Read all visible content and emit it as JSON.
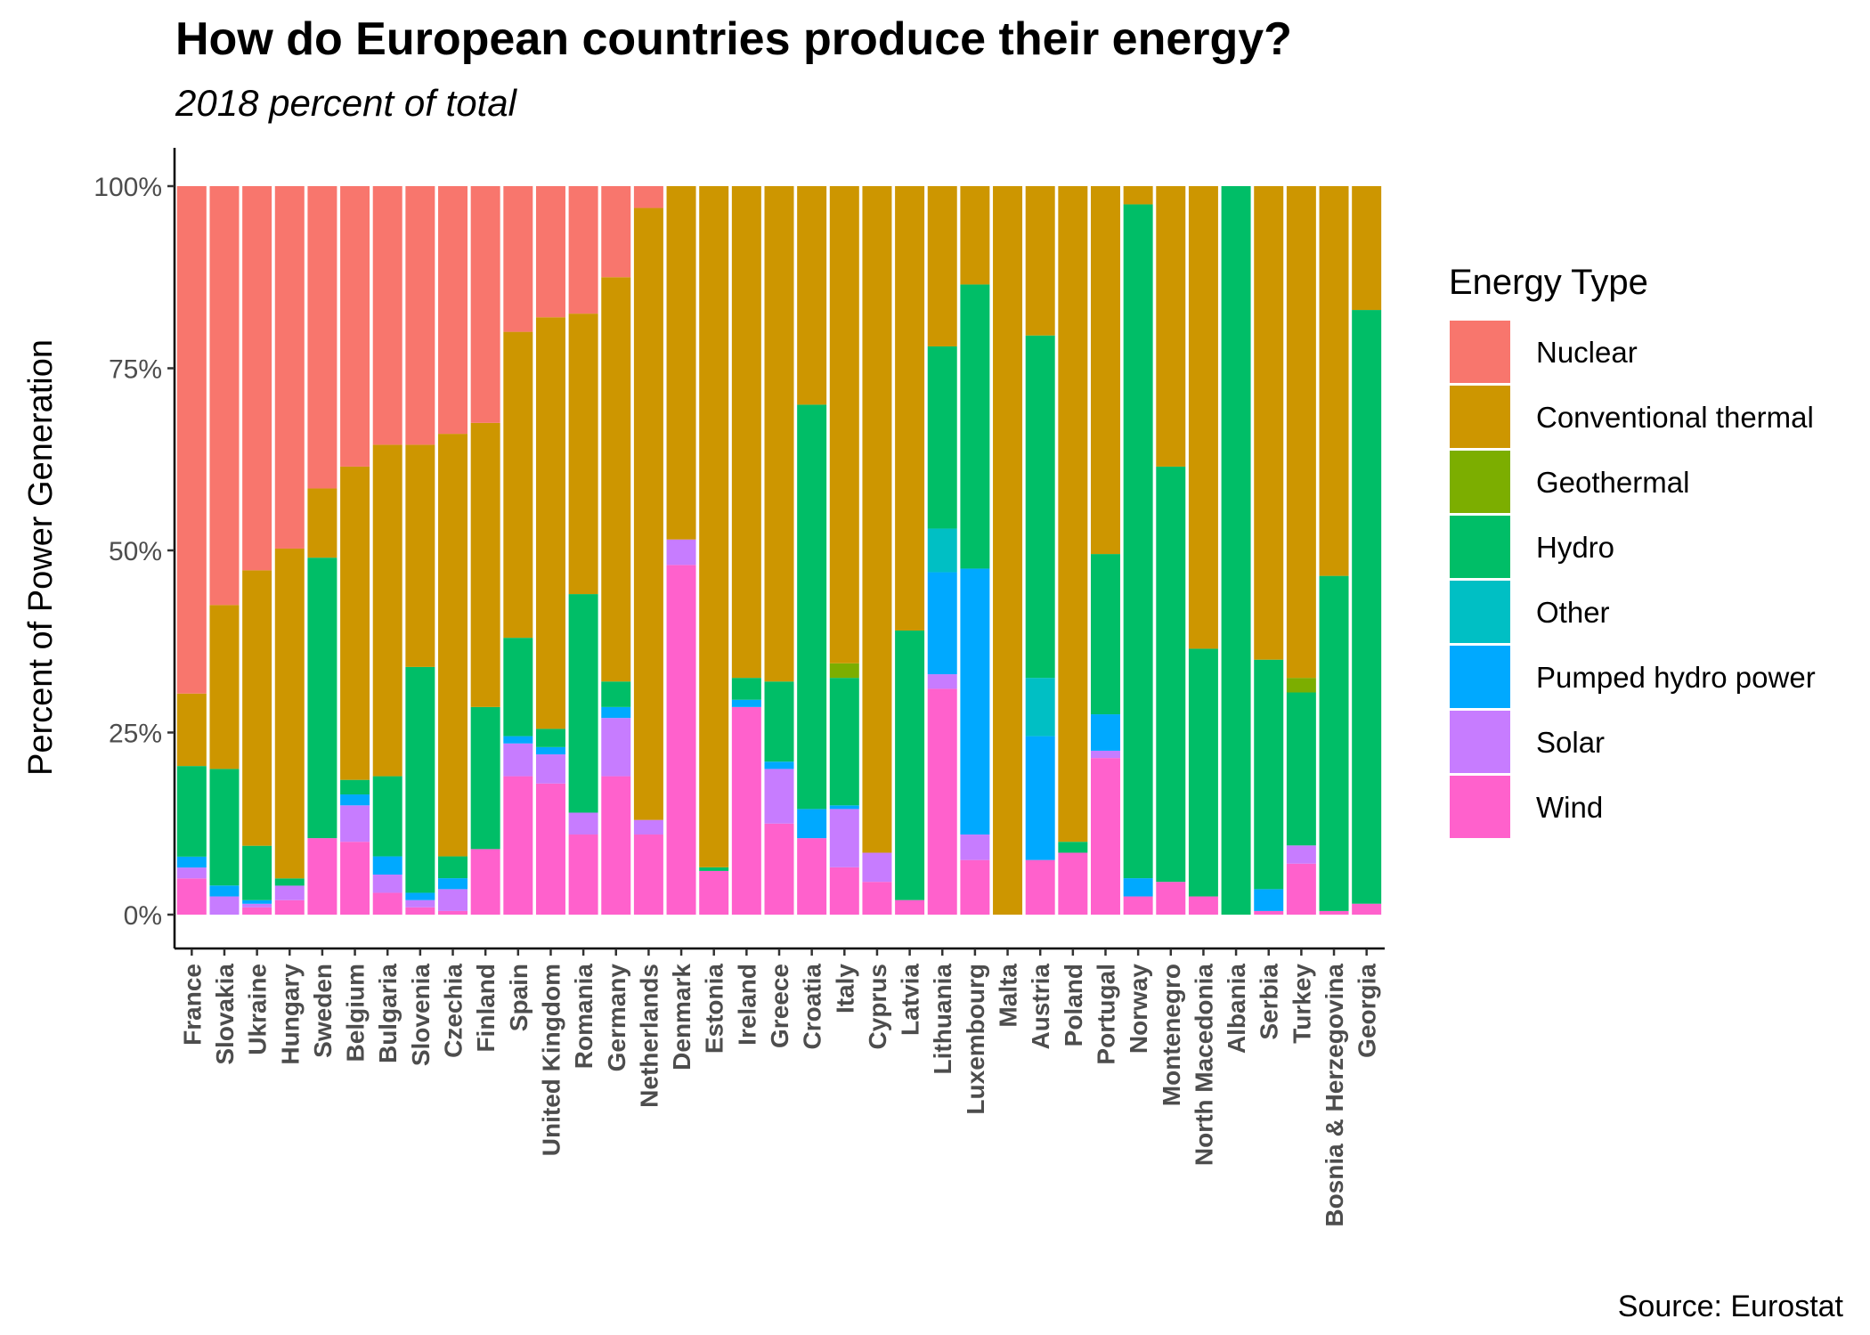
{
  "chart_data": {
    "type": "bar",
    "stacked": true,
    "title": "How do European countries produce their energy?",
    "subtitle": "2018 percent of total",
    "caption": "Source: Eurostat",
    "xlabel": "",
    "ylabel": "Percent of Power Generation",
    "ylim": [
      0,
      1
    ],
    "yticks": [
      {
        "value": 0,
        "label": "0%"
      },
      {
        "value": 0.25,
        "label": "25%"
      },
      {
        "value": 0.5,
        "label": "50%"
      },
      {
        "value": 0.75,
        "label": "75%"
      },
      {
        "value": 1,
        "label": "100%"
      }
    ],
    "grid": false,
    "legend": {
      "title": "Energy Type",
      "position": "right"
    },
    "categories": [
      "France",
      "Slovakia",
      "Ukraine",
      "Hungary",
      "Sweden",
      "Belgium",
      "Bulgaria",
      "Slovenia",
      "Czechia",
      "Finland",
      "Spain",
      "United Kingdom",
      "Romania",
      "Germany",
      "Netherlands",
      "Denmark",
      "Estonia",
      "Ireland",
      "Greece",
      "Croatia",
      "Italy",
      "Cyprus",
      "Latvia",
      "Lithuania",
      "Luxembourg",
      "Malta",
      "Austria",
      "Poland",
      "Portugal",
      "Norway",
      "Montenegro",
      "North Macedonia",
      "Albania",
      "Serbia",
      "Turkey",
      "Bosnia & Herzegovina",
      "Georgia"
    ],
    "series": [
      {
        "name": "Nuclear",
        "color": "#F8766D",
        "values": [
          0.7,
          0.575,
          0.53,
          0.5,
          0.415,
          0.385,
          0.355,
          0.355,
          0.34,
          0.325,
          0.2,
          0.18,
          0.175,
          0.125,
          0.03,
          0,
          0,
          0,
          0,
          0,
          0,
          0,
          0,
          0,
          0,
          0,
          0,
          0,
          0,
          0,
          0,
          0,
          0,
          0,
          0,
          0,
          0
        ]
      },
      {
        "name": "Conventional thermal",
        "color": "#CD9600",
        "values": [
          0.1,
          0.225,
          0.38,
          0.455,
          0.095,
          0.43,
          0.455,
          0.305,
          0.58,
          0.39,
          0.42,
          0.565,
          0.385,
          0.555,
          0.84,
          0.485,
          0.935,
          0.675,
          0.68,
          0.3,
          0.655,
          0.915,
          0.61,
          0.22,
          0.135,
          1.0,
          0.205,
          0.9,
          0.505,
          0.025,
          0.385,
          0.635,
          0,
          0.65,
          0.675,
          0.535,
          0.17
        ]
      },
      {
        "name": "Geothermal",
        "color": "#7CAE00",
        "values": [
          0,
          0,
          0,
          0,
          0,
          0,
          0,
          0,
          0,
          0,
          0,
          0,
          0,
          0,
          0,
          0,
          0,
          0,
          0,
          0,
          0.02,
          0,
          0,
          0,
          0,
          0,
          0,
          0,
          0,
          0,
          0,
          0,
          0,
          0,
          0.02,
          0,
          0
        ]
      },
      {
        "name": "Hydro",
        "color": "#00BE67",
        "values": [
          0.125,
          0.16,
          0.075,
          0.01,
          0.385,
          0.02,
          0.11,
          0.31,
          0.03,
          0.195,
          0.135,
          0.025,
          0.3,
          0.035,
          0,
          0,
          0.005,
          0.03,
          0.11,
          0.555,
          0.175,
          0,
          0.37,
          0.25,
          0.39,
          0,
          0.47,
          0.015,
          0.22,
          0.925,
          0.57,
          0.34,
          1.0,
          0.315,
          0.21,
          0.46,
          0.815
        ]
      },
      {
        "name": "Other",
        "color": "#00BFC4",
        "values": [
          0,
          0,
          0,
          0,
          0,
          0,
          0,
          0,
          0,
          0,
          0,
          0,
          0,
          0,
          0,
          0,
          0,
          0,
          0,
          0,
          0,
          0,
          0,
          0.06,
          0,
          0,
          0.08,
          0,
          0,
          0,
          0,
          0,
          0,
          0,
          0,
          0,
          0
        ]
      },
      {
        "name": "Pumped hydro power",
        "color": "#00A9FF",
        "values": [
          0.015,
          0.015,
          0.005,
          0,
          0,
          0.015,
          0.025,
          0.01,
          0.015,
          0,
          0.01,
          0.01,
          0,
          0.015,
          0,
          0,
          0,
          0.01,
          0.01,
          0.04,
          0.005,
          0,
          0,
          0.14,
          0.365,
          0,
          0.17,
          0,
          0.05,
          0.025,
          0,
          0,
          0,
          0.03,
          0,
          0,
          0
        ]
      },
      {
        "name": "Solar",
        "color": "#C77CFF",
        "values": [
          0.015,
          0.025,
          0.005,
          0.02,
          0,
          0.05,
          0.025,
          0.01,
          0.03,
          0,
          0.045,
          0.04,
          0.03,
          0.08,
          0.02,
          0.035,
          0,
          0,
          0.075,
          0,
          0.08,
          0.04,
          0,
          0.02,
          0.035,
          0,
          0,
          0,
          0.01,
          0,
          0,
          0,
          0,
          0,
          0.025,
          0,
          0
        ]
      },
      {
        "name": "Wind",
        "color": "#FF61CC",
        "values": [
          0.05,
          0,
          0.01,
          0.02,
          0.105,
          0.1,
          0.03,
          0.01,
          0.005,
          0.09,
          0.19,
          0.18,
          0.11,
          0.19,
          0.11,
          0.48,
          0.06,
          0.285,
          0.125,
          0.105,
          0.065,
          0.045,
          0.02,
          0.31,
          0.075,
          0,
          0.075,
          0.085,
          0.215,
          0.025,
          0.045,
          0.025,
          0,
          0.005,
          0.07,
          0.005,
          0.015
        ]
      }
    ]
  }
}
